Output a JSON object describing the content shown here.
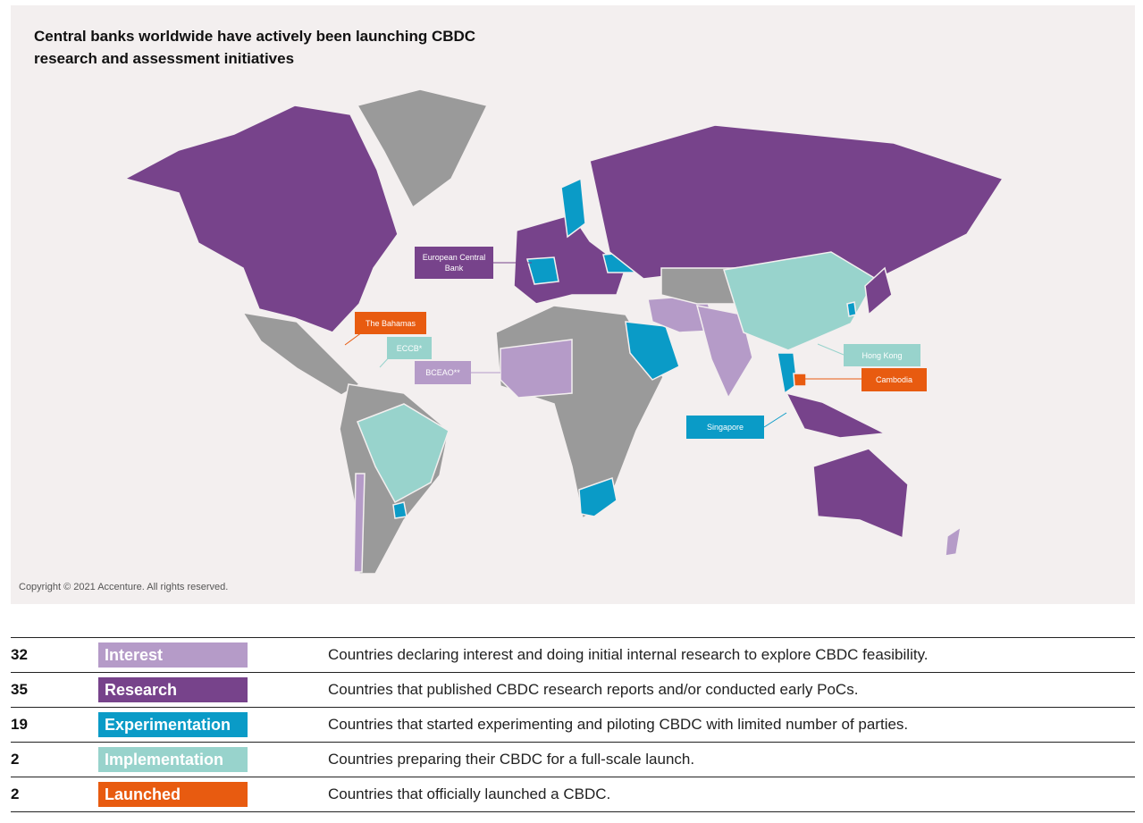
{
  "title": "Central banks worldwide have actively been launching CBDC research and assessment initiatives",
  "copyright": "Copyright © 2021 Accenture. All rights reserved.",
  "colors": {
    "interest": "#b59bc8",
    "research": "#77438b",
    "experimentation": "#0a9bc7",
    "implementation": "#98d3cc",
    "launched": "#e85b10",
    "none": "#9a9a9a",
    "background": "#f3efef"
  },
  "callouts": {
    "ecb": "European Central Bank",
    "bahamas": "The Bahamas",
    "eccb": "ECCB*",
    "bceao": "BCEAO**",
    "hongkong": "Hong Kong",
    "cambodia": "Cambodia",
    "singapore": "Singapore"
  },
  "legend": [
    {
      "count": "32",
      "label": "Interest",
      "description": "Countries declaring interest and doing initial internal research to explore CBDC feasibility."
    },
    {
      "count": "35",
      "label": "Research",
      "description": "Countries that published CBDC research reports and/or conducted early PoCs."
    },
    {
      "count": "19",
      "label": "Experimentation",
      "description": "Countries that started experimenting and piloting CBDC with limited number of parties."
    },
    {
      "count": "2",
      "label": "Implementation",
      "description": "Countries preparing their CBDC for a full-scale launch."
    },
    {
      "count": "2",
      "label": "Launched",
      "description": "Countries that officially launched a CBDC."
    }
  ]
}
